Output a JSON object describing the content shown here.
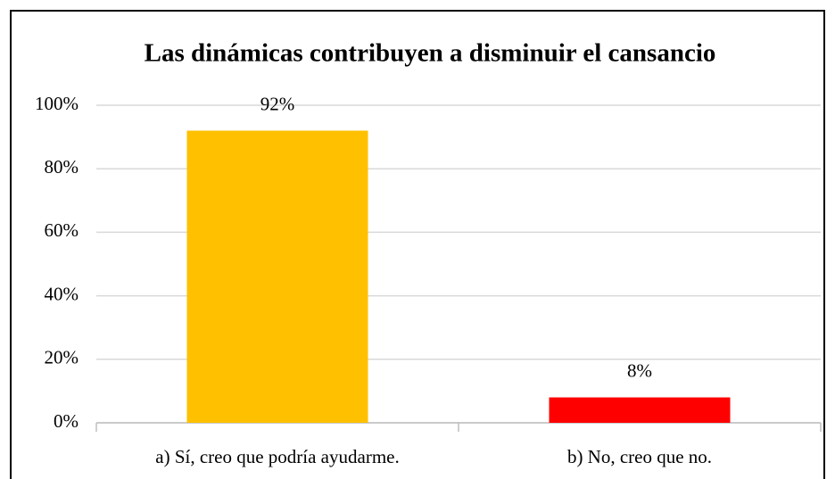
{
  "chart_data": {
    "type": "bar",
    "title": "Las dinámicas contribuyen a disminuir el cansancio",
    "categories": [
      "a) Sí, creo que podría ayudarme.",
      "b) No, creo que no."
    ],
    "values": [
      92,
      8
    ],
    "value_labels": [
      "92%",
      "8%"
    ],
    "colors": [
      "#ffc000",
      "#ff0000"
    ],
    "ylim": [
      0,
      100
    ],
    "yticks": [
      {
        "value": 0,
        "label": "0%"
      },
      {
        "value": 20,
        "label": "20%"
      },
      {
        "value": 40,
        "label": "40%"
      },
      {
        "value": 60,
        "label": "60%"
      },
      {
        "value": 80,
        "label": "80%"
      },
      {
        "value": 100,
        "label": "100%"
      }
    ],
    "grid": true
  }
}
